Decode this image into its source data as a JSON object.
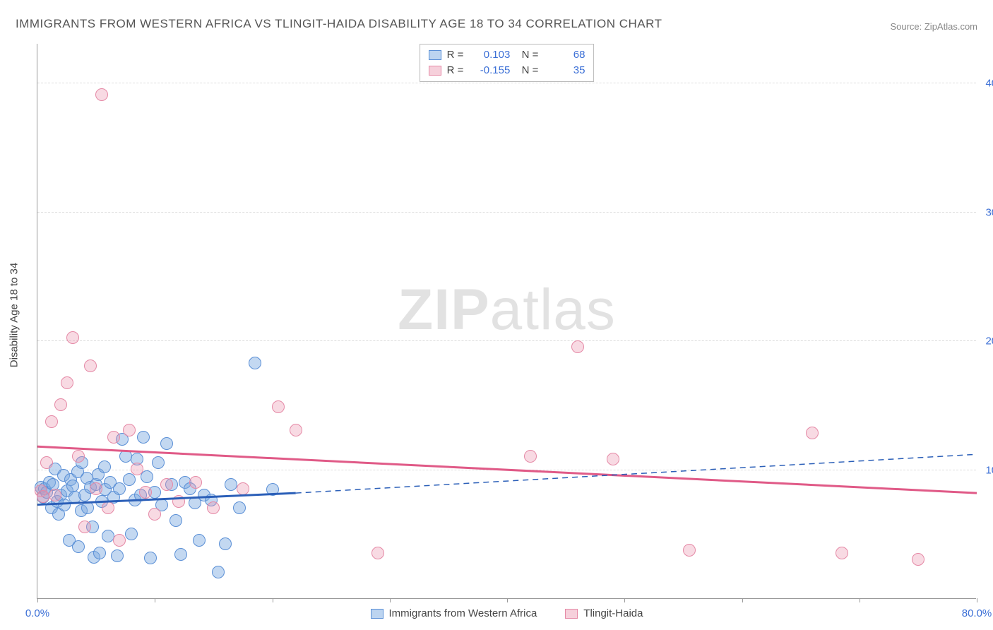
{
  "title": "IMMIGRANTS FROM WESTERN AFRICA VS TLINGIT-HAIDA DISABILITY AGE 18 TO 34 CORRELATION CHART",
  "source": "Source: ZipAtlas.com",
  "watermark": {
    "bold": "ZIP",
    "rest": "atlas"
  },
  "ylabel": "Disability Age 18 to 34",
  "chart": {
    "type": "scatter",
    "xlim": [
      0,
      80
    ],
    "ylim": [
      0,
      43
    ],
    "xticks": [
      0,
      10,
      20,
      30,
      40,
      50,
      60,
      70,
      80
    ],
    "xtick_labels": {
      "0": "0.0%",
      "80": "80.0%"
    },
    "yticks": [
      10,
      20,
      30,
      40
    ],
    "ytick_labels": [
      "10.0%",
      "20.0%",
      "30.0%",
      "40.0%"
    ],
    "background_color": "#ffffff",
    "grid_color": "#dddddd",
    "axis_color": "#999999",
    "label_fontsize": 15,
    "title_fontsize": 17,
    "tick_color": "#3b6fd6",
    "point_radius": 9,
    "series": [
      {
        "name": "Immigrants from Western Africa",
        "fill": "rgba(121,169,225,0.45)",
        "stroke": "#5a8fd6",
        "r_value": "0.103",
        "n_value": "68",
        "regression": {
          "x1": 0,
          "y1": 7.3,
          "x2": 22,
          "y2": 8.2,
          "dash_to_x": 80,
          "dash_to_y": 11.2,
          "color": "#2b5fb8",
          "width": 3
        },
        "points": [
          [
            0.3,
            8.6
          ],
          [
            0.5,
            7.8
          ],
          [
            0.6,
            8.5
          ],
          [
            0.8,
            8.2
          ],
          [
            1.0,
            9.0
          ],
          [
            1.2,
            7.0
          ],
          [
            1.3,
            8.8
          ],
          [
            1.5,
            10.0
          ],
          [
            1.7,
            7.5
          ],
          [
            1.8,
            6.5
          ],
          [
            2.0,
            8.0
          ],
          [
            2.2,
            9.5
          ],
          [
            2.3,
            7.2
          ],
          [
            2.5,
            8.3
          ],
          [
            2.7,
            4.5
          ],
          [
            2.8,
            9.2
          ],
          [
            3.0,
            8.7
          ],
          [
            3.2,
            7.8
          ],
          [
            3.4,
            9.8
          ],
          [
            3.5,
            4.0
          ],
          [
            3.7,
            6.8
          ],
          [
            3.8,
            10.5
          ],
          [
            4.0,
            8.0
          ],
          [
            4.2,
            9.3
          ],
          [
            4.3,
            7.0
          ],
          [
            4.5,
            8.6
          ],
          [
            4.7,
            5.5
          ],
          [
            4.8,
            3.2
          ],
          [
            5.0,
            8.8
          ],
          [
            5.2,
            9.6
          ],
          [
            5.3,
            3.5
          ],
          [
            5.5,
            7.5
          ],
          [
            5.7,
            10.2
          ],
          [
            5.8,
            8.4
          ],
          [
            6.0,
            4.8
          ],
          [
            6.2,
            9.0
          ],
          [
            6.5,
            7.8
          ],
          [
            6.8,
            3.3
          ],
          [
            7.0,
            8.5
          ],
          [
            7.2,
            12.3
          ],
          [
            7.5,
            11.0
          ],
          [
            7.8,
            9.2
          ],
          [
            8.0,
            5.0
          ],
          [
            8.3,
            7.6
          ],
          [
            8.5,
            10.8
          ],
          [
            8.8,
            8.0
          ],
          [
            9.0,
            12.5
          ],
          [
            9.3,
            9.4
          ],
          [
            9.6,
            3.1
          ],
          [
            10.0,
            8.2
          ],
          [
            10.3,
            10.5
          ],
          [
            10.6,
            7.2
          ],
          [
            11.0,
            12.0
          ],
          [
            11.4,
            8.8
          ],
          [
            11.8,
            6.0
          ],
          [
            12.2,
            3.4
          ],
          [
            12.6,
            9.0
          ],
          [
            13.0,
            8.5
          ],
          [
            13.4,
            7.4
          ],
          [
            13.8,
            4.5
          ],
          [
            14.2,
            8.0
          ],
          [
            14.8,
            7.6
          ],
          [
            15.4,
            2.0
          ],
          [
            16.0,
            4.2
          ],
          [
            16.5,
            8.8
          ],
          [
            17.2,
            7.0
          ],
          [
            18.5,
            18.2
          ],
          [
            20.0,
            8.4
          ]
        ]
      },
      {
        "name": "Tlingit-Haida",
        "fill": "rgba(235,150,175,0.35)",
        "stroke": "#e589a6",
        "r_value": "-0.155",
        "n_value": "35",
        "regression": {
          "x1": 0,
          "y1": 11.8,
          "x2": 80,
          "y2": 8.2,
          "color": "#e05a87",
          "width": 3
        },
        "points": [
          [
            0.3,
            8.3
          ],
          [
            0.5,
            7.9
          ],
          [
            0.8,
            10.5
          ],
          [
            1.2,
            13.7
          ],
          [
            1.5,
            8.0
          ],
          [
            2.0,
            15.0
          ],
          [
            2.5,
            16.7
          ],
          [
            3.0,
            20.2
          ],
          [
            3.5,
            11.0
          ],
          [
            4.0,
            5.5
          ],
          [
            4.5,
            18.0
          ],
          [
            5.0,
            8.5
          ],
          [
            5.5,
            39.0
          ],
          [
            6.0,
            7.0
          ],
          [
            6.5,
            12.5
          ],
          [
            7.0,
            4.5
          ],
          [
            7.8,
            13.0
          ],
          [
            8.5,
            10.0
          ],
          [
            9.2,
            8.2
          ],
          [
            10.0,
            6.5
          ],
          [
            11.0,
            8.8
          ],
          [
            12.0,
            7.5
          ],
          [
            13.5,
            9.0
          ],
          [
            15.0,
            7.0
          ],
          [
            17.5,
            8.5
          ],
          [
            20.5,
            14.8
          ],
          [
            22.0,
            13.0
          ],
          [
            29.0,
            3.5
          ],
          [
            42.0,
            11.0
          ],
          [
            46.0,
            19.5
          ],
          [
            49.0,
            10.8
          ],
          [
            55.5,
            3.7
          ],
          [
            66.0,
            12.8
          ],
          [
            68.5,
            3.5
          ],
          [
            75.0,
            3.0
          ]
        ]
      }
    ]
  }
}
